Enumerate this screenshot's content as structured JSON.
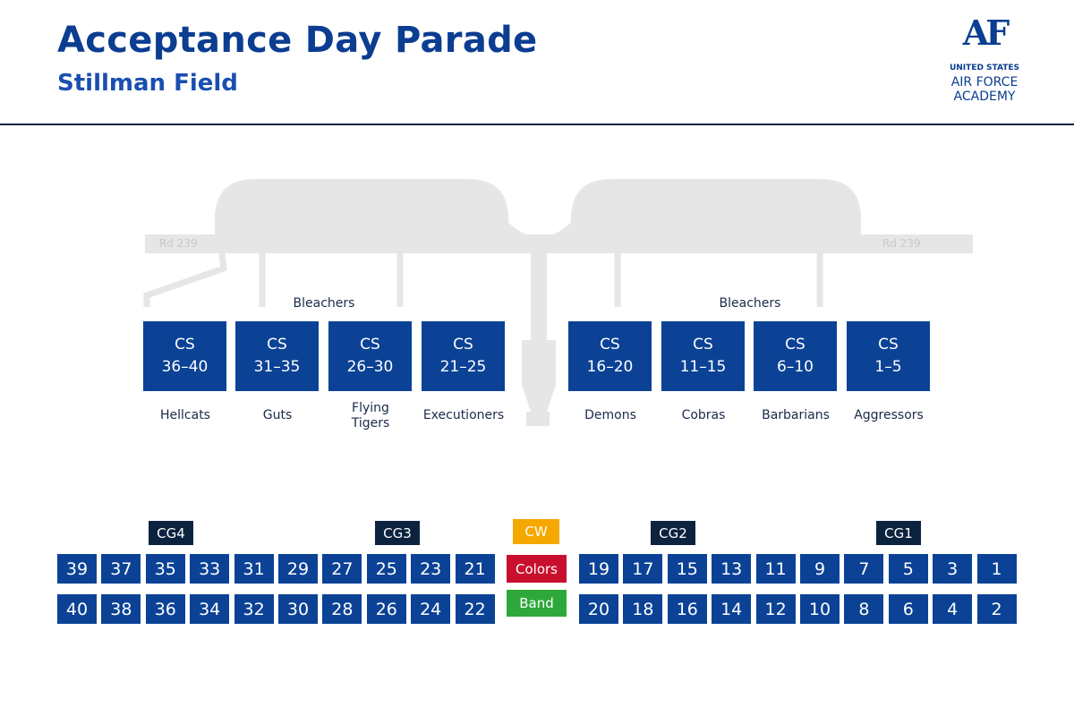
{
  "header": {
    "title": "Acceptance Day Parade",
    "subtitle": "Stillman Field",
    "logo": {
      "mark": "AF",
      "line1": "UNITED STATES",
      "line2": "AIR FORCE",
      "line3": "ACADEMY"
    }
  },
  "map": {
    "road_labels": [
      "Rd 239",
      "Rd 239"
    ],
    "bleachers_labels": [
      "Bleachers",
      "Bleachers"
    ]
  },
  "groups": [
    {
      "label": "CS",
      "range": "36–40",
      "name": "Hellcats"
    },
    {
      "label": "CS",
      "range": "31–35",
      "name": "Guts"
    },
    {
      "label": "CS",
      "range": "26–30",
      "name": "Flying\nTigers"
    },
    {
      "label": "CS",
      "range": "21–25",
      "name": "Executioners"
    },
    {
      "label": "CS",
      "range": "16–20",
      "name": "Demons"
    },
    {
      "label": "CS",
      "range": "11–15",
      "name": "Cobras"
    },
    {
      "label": "CS",
      "range": "6–10",
      "name": "Barbarians"
    },
    {
      "label": "CS",
      "range": "1–5",
      "name": "Aggressors"
    }
  ],
  "formation": {
    "group_labels": [
      "CG4",
      "CG3",
      "CG2",
      "CG1"
    ],
    "center": {
      "top": "CW",
      "middle": "Colors",
      "bottom": "Band"
    },
    "front_left": [
      39,
      37,
      35,
      33,
      31,
      29,
      27,
      25,
      23,
      21
    ],
    "front_right": [
      19,
      17,
      15,
      13,
      11,
      9,
      7,
      5,
      3,
      1
    ],
    "back_left": [
      40,
      38,
      36,
      34,
      32,
      30,
      28,
      26,
      24,
      22
    ],
    "back_right": [
      20,
      18,
      16,
      14,
      12,
      10,
      8,
      6,
      4,
      2
    ]
  }
}
